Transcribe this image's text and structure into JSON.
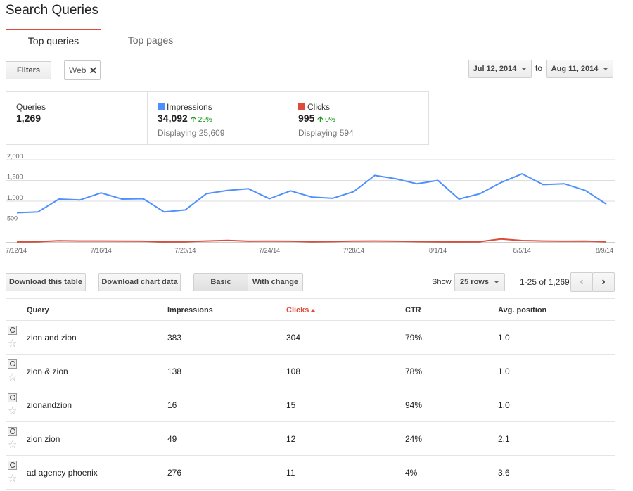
{
  "page_title": "Search Queries",
  "tabs": [
    {
      "label": "Top queries"
    },
    {
      "label": "Top pages"
    }
  ],
  "filters": {
    "button_label": "Filters",
    "chip_label": "Web",
    "chip_close": "✕"
  },
  "date_range": {
    "start": "Jul 12, 2014",
    "to_label": "to",
    "end": "Aug 11, 2014"
  },
  "stats": {
    "queries": {
      "label": "Queries",
      "value": "1,269"
    },
    "impressions": {
      "label": "Impressions",
      "value": "34,092",
      "delta": "29%",
      "sub": "Displaying 25,609",
      "color": "#4d90fe"
    },
    "clicks": {
      "label": "Clicks",
      "value": "995",
      "delta": "0%",
      "sub": "Displaying 594",
      "color": "#dd4b39"
    }
  },
  "chart_data": {
    "type": "line",
    "x": [
      "7/12/14",
      "7/13/14",
      "7/14/14",
      "7/15/14",
      "7/16/14",
      "7/17/14",
      "7/18/14",
      "7/19/14",
      "7/20/14",
      "7/21/14",
      "7/22/14",
      "7/23/14",
      "7/24/14",
      "7/25/14",
      "7/26/14",
      "7/27/14",
      "7/28/14",
      "7/29/14",
      "7/30/14",
      "7/31/14",
      "8/1/14",
      "8/2/14",
      "8/3/14",
      "8/4/14",
      "8/5/14",
      "8/6/14",
      "8/7/14",
      "8/8/14",
      "8/9/14"
    ],
    "tick_labels": [
      "7/12/14",
      "7/16/14",
      "7/20/14",
      "7/24/14",
      "7/28/14",
      "8/1/14",
      "8/5/14",
      "8/9/14"
    ],
    "y_ticks": [
      "2,000",
      "1,500",
      "1,000",
      "500"
    ],
    "ylim": [
      0,
      2000
    ],
    "series": [
      {
        "name": "Impressions",
        "color": "#4d90fe",
        "values": [
          720,
          740,
          1050,
          1030,
          1200,
          1050,
          1060,
          740,
          790,
          1180,
          1260,
          1300,
          1060,
          1250,
          1100,
          1070,
          1230,
          1620,
          1540,
          1420,
          1500,
          1050,
          1180,
          1450,
          1660,
          1400,
          1420,
          1260,
          930
        ]
      },
      {
        "name": "Clicks",
        "color": "#dd4b39",
        "values": [
          20,
          25,
          45,
          40,
          40,
          38,
          35,
          22,
          25,
          40,
          55,
          35,
          38,
          35,
          25,
          30,
          38,
          40,
          35,
          30,
          25,
          20,
          25,
          90,
          50,
          40,
          35,
          38,
          25
        ]
      }
    ],
    "grid": true
  },
  "toolbar": {
    "download_table": "Download this table",
    "download_chart": "Download chart data",
    "basic": "Basic",
    "with_change": "With change",
    "show_label": "Show",
    "rows_select": "25 rows",
    "pager_text": "1-25 of 1,269",
    "prev": "‹",
    "next": "›"
  },
  "table": {
    "headers": {
      "query": "Query",
      "impressions": "Impressions",
      "clicks": "Clicks",
      "ctr": "CTR",
      "avg_position": "Avg. position"
    },
    "rows": [
      {
        "query": "zion and zion",
        "impressions": "383",
        "clicks": "304",
        "ctr": "79%",
        "avg_position": "1.0"
      },
      {
        "query": "zion & zion",
        "impressions": "138",
        "clicks": "108",
        "ctr": "78%",
        "avg_position": "1.0"
      },
      {
        "query": "zionandzion",
        "impressions": "16",
        "clicks": "15",
        "ctr": "94%",
        "avg_position": "1.0"
      },
      {
        "query": "zion zion",
        "impressions": "49",
        "clicks": "12",
        "ctr": "24%",
        "avg_position": "2.1"
      },
      {
        "query": "ad agency phoenix",
        "impressions": "276",
        "clicks": "11",
        "ctr": "4%",
        "avg_position": "3.6"
      }
    ]
  }
}
